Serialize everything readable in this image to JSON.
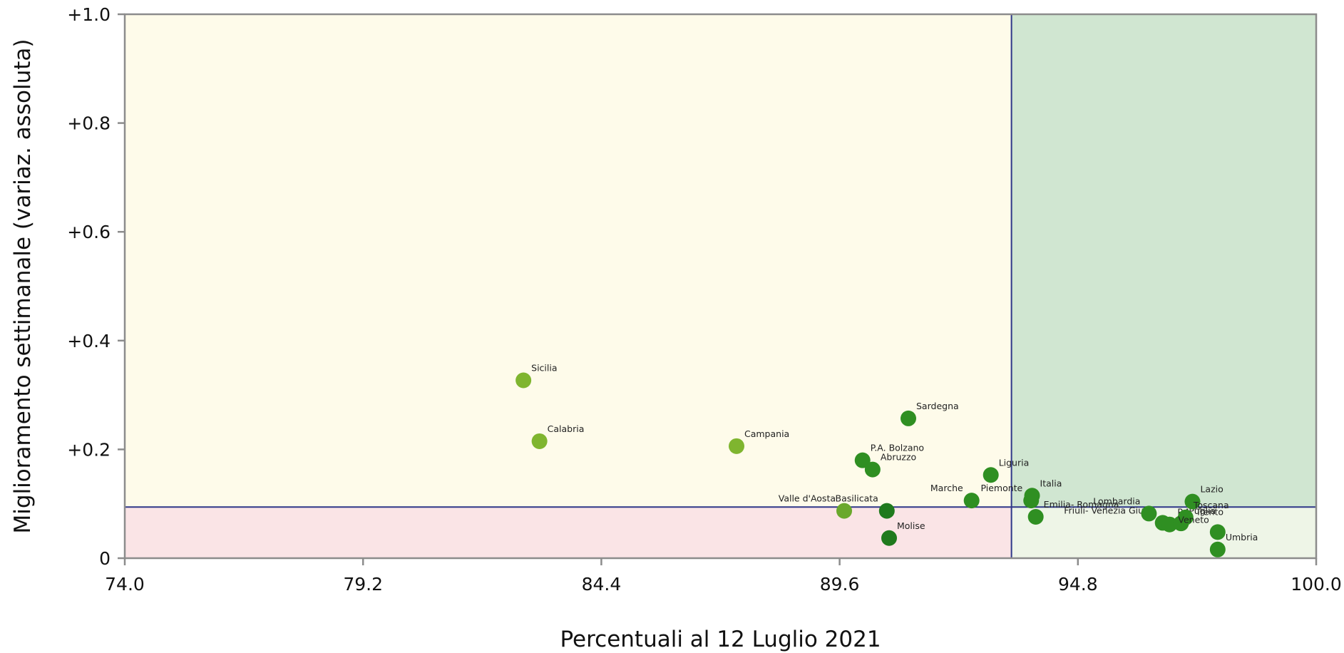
{
  "chart_data": {
    "type": "scatter",
    "title": "",
    "xlabel": "Percentuali al 12 Luglio 2021",
    "ylabel": "Miglioramento settimanale (variaz. assoluta)",
    "xlim": [
      74.0,
      100.0
    ],
    "ylim": [
      0,
      1.0
    ],
    "x_ticks": [
      74.0,
      79.2,
      84.4,
      89.6,
      94.8,
      100.0
    ],
    "x_tick_labels": [
      "74.0",
      "79.2",
      "84.4",
      "89.6",
      "94.8",
      "100.0"
    ],
    "y_ticks": [
      0,
      0.2,
      0.4,
      0.6,
      0.8,
      1.0
    ],
    "y_tick_labels": [
      "0",
      "+0.2",
      "+0.4",
      "+0.6",
      "+0.8",
      "+1.0"
    ],
    "reference_lines": {
      "x": 93.35,
      "y": 0.094
    },
    "quadrant_colors": {
      "upper_left": "#fefbea",
      "upper_right": "#d0e6d1",
      "lower_left": "#fae4e6",
      "lower_right": "#eef5e7"
    },
    "colors": {
      "reference_line": "#2e3788",
      "frame": "#8c8c8c",
      "point_light": "#7fb52f",
      "point_mid": "#6aa82c",
      "point_green": "#2f8f22",
      "point_dark": "#1f7a1d"
    },
    "points": [
      {
        "label": "Sicilia",
        "x": 82.7,
        "y": 0.327,
        "color": "#7fb52f",
        "anchor": "start"
      },
      {
        "label": "Calabria",
        "x": 83.05,
        "y": 0.215,
        "color": "#7fb52f",
        "anchor": "start"
      },
      {
        "label": "Campania",
        "x": 87.35,
        "y": 0.206,
        "color": "#7fb52f",
        "anchor": "start"
      },
      {
        "label": "Sardegna",
        "x": 91.1,
        "y": 0.257,
        "color": "#2f8f22",
        "anchor": "start"
      },
      {
        "label": "P.A. Bolzano",
        "x": 90.1,
        "y": 0.18,
        "color": "#2f8f22",
        "anchor": "start"
      },
      {
        "label": "Abruzzo",
        "x": 90.32,
        "y": 0.163,
        "color": "#2f8f22",
        "anchor": "start"
      },
      {
        "label": "Liguria",
        "x": 92.9,
        "y": 0.153,
        "color": "#2f8f22",
        "anchor": "start"
      },
      {
        "label": "Marche",
        "x": 92.48,
        "y": 0.106,
        "color": "#2f8f22",
        "anchor": "end"
      },
      {
        "label": "Italia",
        "x": 93.8,
        "y": 0.115,
        "color": "#2f8f22",
        "anchor": "start"
      },
      {
        "label": "Piemonte",
        "x": 93.78,
        "y": 0.106,
        "color": "#2f8f22",
        "anchor": "end"
      },
      {
        "label": "Emilia- Romagna",
        "x": 93.88,
        "y": 0.076,
        "color": "#2f8f22",
        "anchor": "start"
      },
      {
        "label": "Valle d'Aosta",
        "x": 89.7,
        "y": 0.087,
        "color": "#6aa82c",
        "anchor": "end"
      },
      {
        "label": "Basilicata",
        "x": 90.63,
        "y": 0.087,
        "color": "#1f7a1d",
        "anchor": "end"
      },
      {
        "label": "Molise",
        "x": 90.68,
        "y": 0.037,
        "color": "#1f7a1d",
        "anchor": "start"
      },
      {
        "label": "Friuli- Venezia Giulia",
        "x": 96.65,
        "y": 0.065,
        "color": "#2f8f22",
        "anchor": "end"
      },
      {
        "label": "Lombardia",
        "x": 96.35,
        "y": 0.082,
        "color": "#2f8f22",
        "anchor": "end"
      },
      {
        "label": "P.A. Trento",
        "x": 96.8,
        "y": 0.062,
        "color": "#2f8f22",
        "anchor": "start"
      },
      {
        "label": "Puglia",
        "x": 97.05,
        "y": 0.064,
        "color": "#2f8f22",
        "anchor": "start"
      },
      {
        "label": "Lazio",
        "x": 97.3,
        "y": 0.104,
        "color": "#2f8f22",
        "anchor": "start"
      },
      {
        "label": "Toscana",
        "x": 97.15,
        "y": 0.075,
        "color": "#2f8f22",
        "anchor": "start"
      },
      {
        "label": "Veneto",
        "x": 97.85,
        "y": 0.048,
        "color": "#2f8f22",
        "anchor": "end"
      },
      {
        "label": "Umbria",
        "x": 97.85,
        "y": 0.016,
        "color": "#2f8f22",
        "anchor": "start"
      }
    ]
  }
}
